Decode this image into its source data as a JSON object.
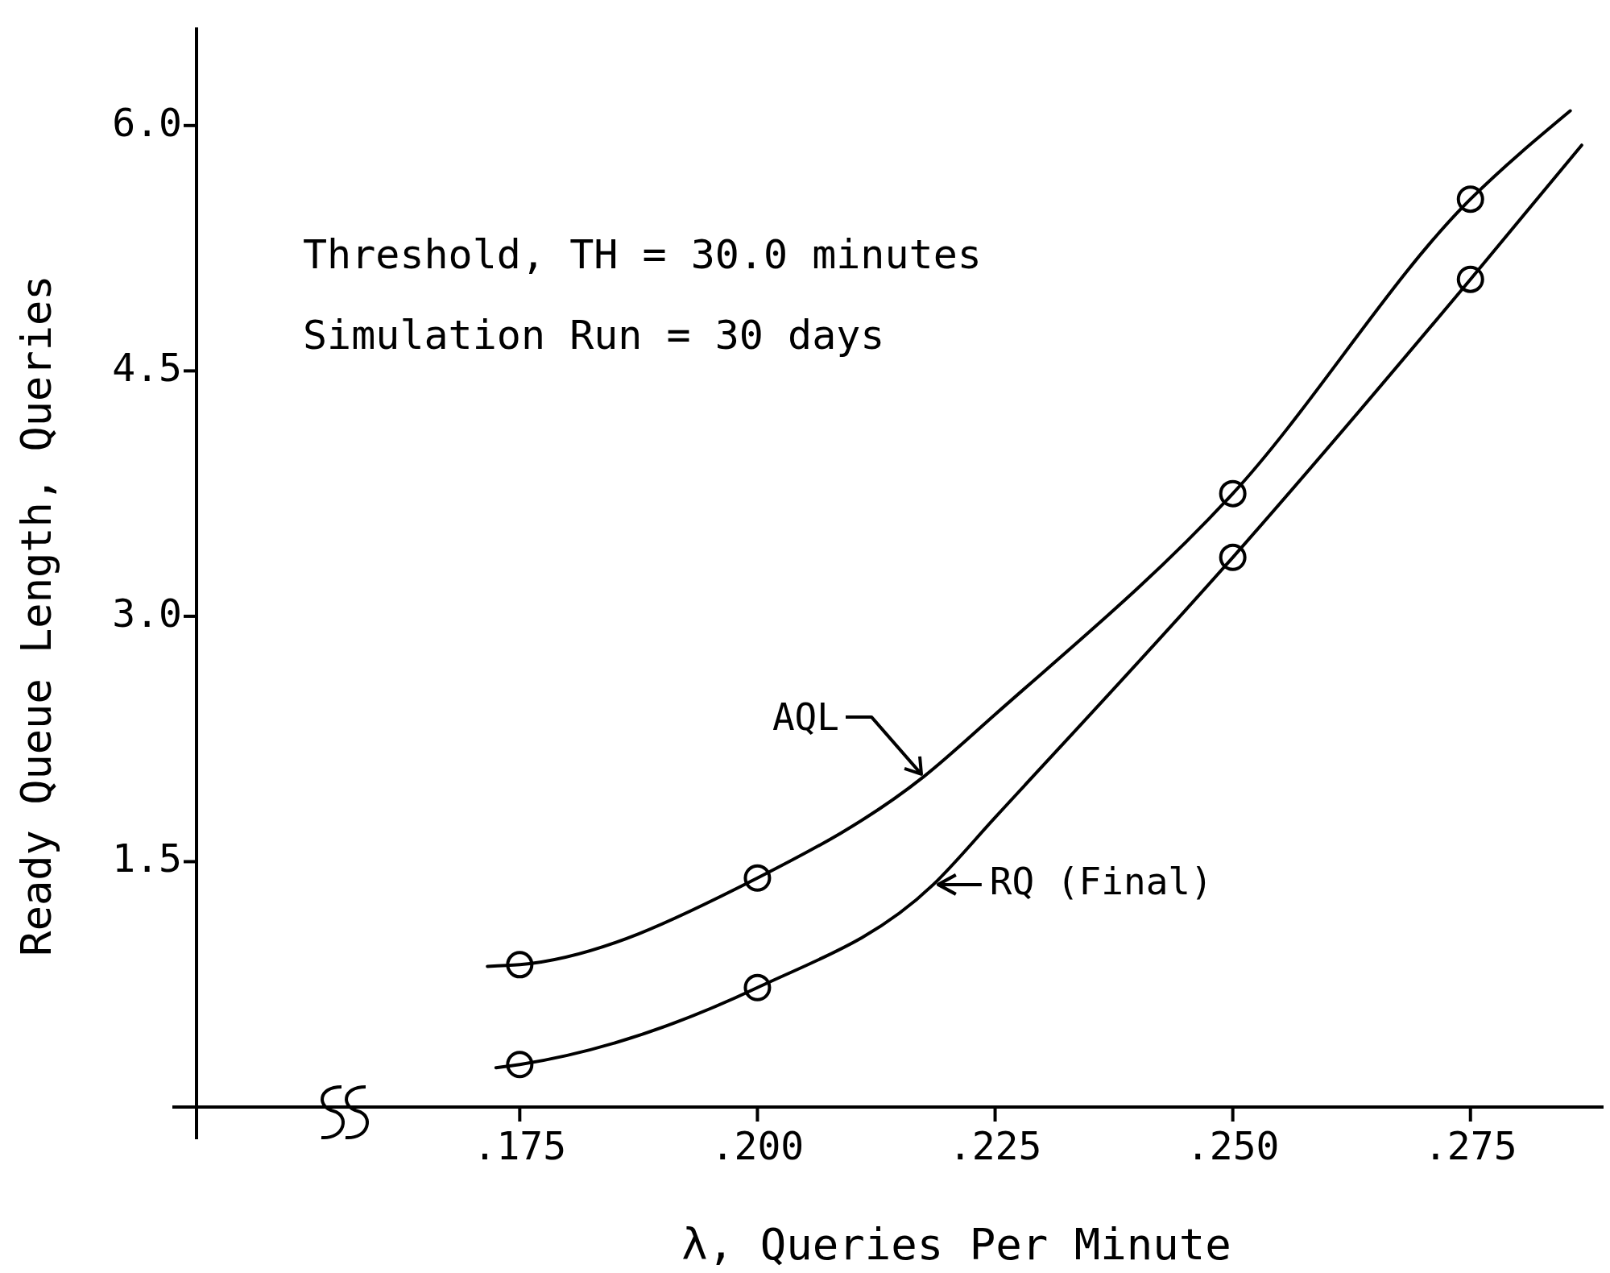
{
  "chart_data": {
    "type": "line",
    "xlabel": "λ, Queries Per Minute",
    "ylabel": "Ready Queue Length, Queries",
    "annotations": [
      "Threshold, TH = 30.0 minutes",
      "Simulation Run = 30 days"
    ],
    "xlim": [
      0.141,
      0.289
    ],
    "ylim": [
      0,
      6.6
    ],
    "xticks": [
      {
        "value": 0.175,
        "label": ".175"
      },
      {
        "value": 0.2,
        "label": ".200"
      },
      {
        "value": 0.225,
        "label": ".225"
      },
      {
        "value": 0.25,
        "label": ".250"
      },
      {
        "value": 0.275,
        "label": ".275"
      }
    ],
    "yticks": [
      {
        "value": 1.5,
        "label": "1.5"
      },
      {
        "value": 3,
        "label": "3.0"
      },
      {
        "value": 4.5,
        "label": "4.5"
      },
      {
        "value": 6,
        "label": "6.0"
      }
    ],
    "series": [
      {
        "name": "AQL",
        "type": "line",
        "color": "#000000",
        "x": [
          0.1716,
          0.175,
          0.2,
          0.2175,
          0.225,
          0.25,
          0.275,
          0.2855
        ],
        "values": [
          0.86,
          0.87,
          1.4,
          2.02,
          2.4,
          3.75,
          5.55,
          6.09
        ]
      },
      {
        "name": "RQ (Final)",
        "type": "line",
        "color": "#000000",
        "x": [
          0.1725,
          0.175,
          0.2,
          0.2185,
          0.225,
          0.25,
          0.275,
          0.2867
        ],
        "values": [
          0.24,
          0.26,
          0.73,
          1.36,
          1.77,
          3.36,
          5.06,
          5.88
        ]
      },
      {
        "type": "scatter",
        "marker": "circle",
        "color": "#000000",
        "x": [
          0.175,
          0.2,
          0.25,
          0.275
        ],
        "values": [
          0.87,
          1.4,
          3.75,
          5.55
        ]
      },
      {
        "type": "scatter",
        "marker": "circle",
        "color": "#000000",
        "x": [
          0.175,
          0.2,
          0.25,
          0.275
        ],
        "values": [
          0.26,
          0.73,
          3.36,
          5.06
        ]
      }
    ]
  }
}
